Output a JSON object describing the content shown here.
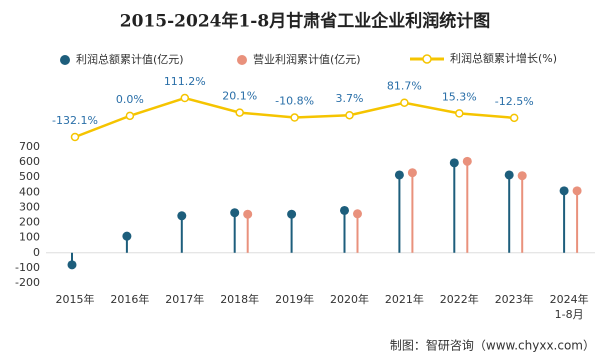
{
  "chart_data": {
    "type": "lollipop-line",
    "title": "2015-2024年1-8月甘肃省工业企业利润统计图",
    "categories": [
      "2015年",
      "2016年",
      "2017年",
      "2018年",
      "2019年",
      "2020年",
      "2021年",
      "2022年",
      "2023年",
      "2024年1-8月"
    ],
    "series": [
      {
        "name": "利润总额累计值(亿元)",
        "color": "#1d5e7c",
        "values": [
          -80,
          110,
          245,
          265,
          255,
          280,
          515,
          595,
          515,
          410
        ]
      },
      {
        "name": "营业利润累计值(亿元)",
        "color": "#e9917c",
        "values": [
          null,
          null,
          null,
          255,
          null,
          258,
          530,
          605,
          510,
          410
        ]
      },
      {
        "name": "利润总额累计增长(%)",
        "color": "#f5c400",
        "kind": "line",
        "values": [
          -132.1,
          0.0,
          111.2,
          20.1,
          -10.8,
          3.7,
          81.7,
          15.3,
          -12.5,
          null
        ],
        "value_labels": [
          "-132.1%",
          "0.0%",
          "111.2%",
          "20.1%",
          "-10.8%",
          "3.7%",
          "81.7%",
          "15.3%",
          "-12.5%",
          null
        ]
      }
    ],
    "ylim": [
      -200,
      700
    ],
    "yticks": [
      -200,
      -100,
      0,
      100,
      200,
      300,
      400,
      500,
      600,
      700
    ],
    "source": "制图：智研咨询（www.chyxx.com）"
  }
}
